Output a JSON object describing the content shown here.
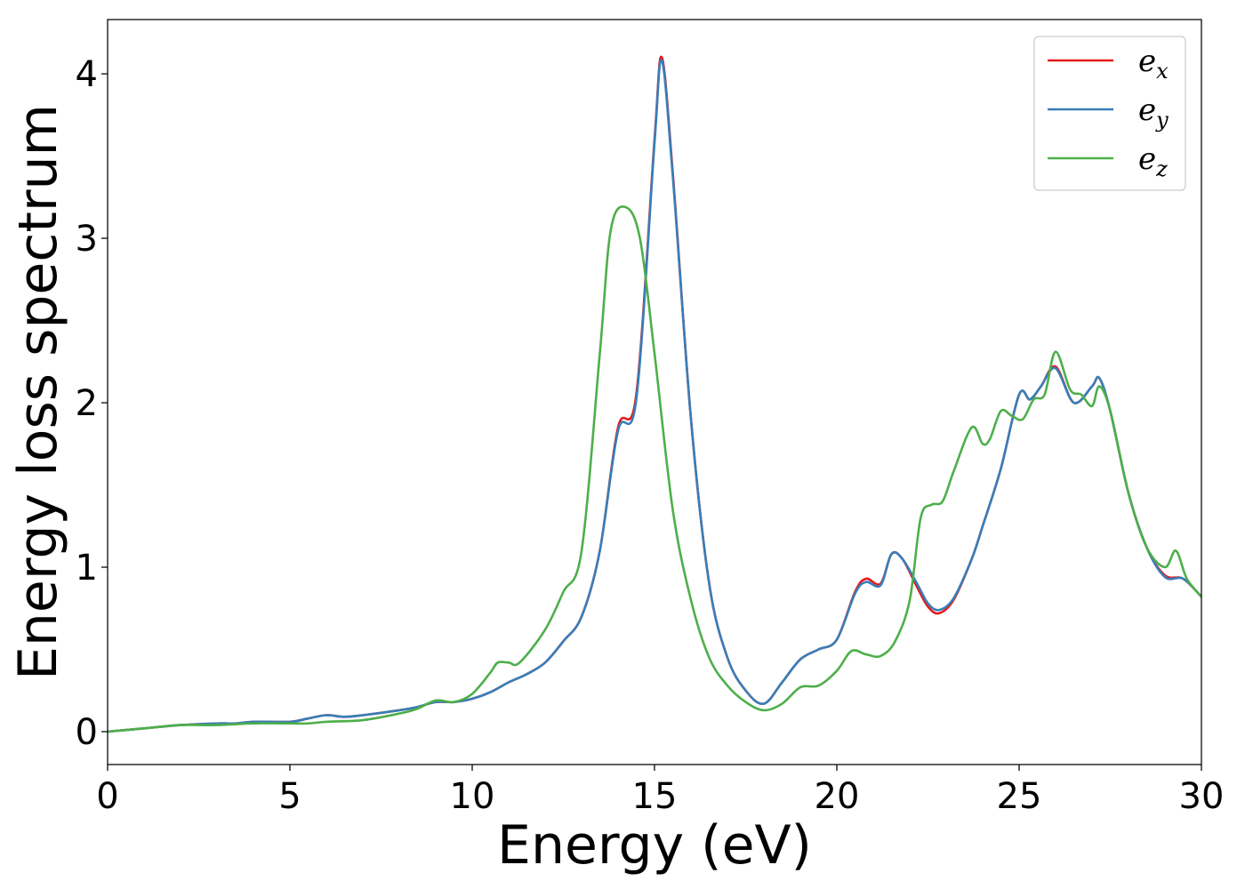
{
  "chart_data": {
    "type": "line",
    "title": "",
    "xlabel": "Energy (eV)",
    "ylabel": "Energy loss spectrum",
    "xlim": [
      0,
      30
    ],
    "ylim": [
      -0.2,
      4.33
    ],
    "xticks": [
      0,
      5,
      10,
      15,
      20,
      25,
      30
    ],
    "yticks": [
      0,
      1,
      2,
      3,
      4
    ],
    "grid": false,
    "legend_position": "top-right",
    "series": [
      {
        "name": "e_x",
        "label_base": "e",
        "label_sub": "x",
        "color": "#e41a1c",
        "x": [
          0,
          1,
          2,
          3,
          3.5,
          4,
          5,
          5.5,
          6,
          6.5,
          7,
          8,
          8.5,
          9,
          9.5,
          10,
          10.5,
          11,
          11.5,
          12,
          12.5,
          13,
          13.5,
          14,
          14.5,
          15,
          15.2,
          15.5,
          16,
          16.5,
          17,
          17.5,
          18,
          18.5,
          19,
          19.5,
          20,
          20.5,
          20.8,
          21.2,
          21.5,
          21.8,
          22.2,
          22.5,
          22.8,
          23.2,
          23.7,
          24,
          24.5,
          25,
          25.3,
          25.6,
          26,
          26.5,
          27,
          27.2,
          27.5,
          28,
          28.5,
          29,
          29.5,
          30
        ],
        "y": [
          0,
          0.02,
          0.04,
          0.05,
          0.05,
          0.06,
          0.06,
          0.08,
          0.1,
          0.09,
          0.1,
          0.13,
          0.15,
          0.18,
          0.18,
          0.2,
          0.24,
          0.3,
          0.35,
          0.42,
          0.55,
          0.7,
          1.1,
          1.85,
          2.05,
          3.6,
          4.1,
          3.4,
          1.9,
          0.9,
          0.45,
          0.25,
          0.17,
          0.3,
          0.44,
          0.5,
          0.56,
          0.85,
          0.93,
          0.9,
          1.08,
          1.05,
          0.88,
          0.76,
          0.72,
          0.8,
          1.05,
          1.25,
          1.6,
          2.05,
          2.02,
          2.1,
          2.22,
          2.0,
          2.1,
          2.15,
          1.95,
          1.45,
          1.12,
          0.95,
          0.93,
          0.82
        ]
      },
      {
        "name": "e_y",
        "label_base": "e",
        "label_sub": "y",
        "color": "#377eb8",
        "x": [
          0,
          1,
          2,
          3,
          3.5,
          4,
          5,
          5.5,
          6,
          6.5,
          7,
          8,
          8.5,
          9,
          9.5,
          10,
          10.5,
          11,
          11.5,
          12,
          12.5,
          13,
          13.5,
          14,
          14.5,
          15,
          15.2,
          15.5,
          16,
          16.5,
          17,
          17.5,
          18,
          18.5,
          19,
          19.5,
          20,
          20.5,
          20.8,
          21.2,
          21.5,
          21.8,
          22.2,
          22.5,
          22.8,
          23.2,
          23.7,
          24,
          24.5,
          25,
          25.3,
          25.6,
          26,
          26.5,
          27,
          27.2,
          27.5,
          28,
          28.5,
          29,
          29.5,
          30
        ],
        "y": [
          0,
          0.02,
          0.04,
          0.05,
          0.05,
          0.06,
          0.06,
          0.08,
          0.1,
          0.09,
          0.1,
          0.13,
          0.15,
          0.18,
          0.18,
          0.2,
          0.24,
          0.3,
          0.35,
          0.42,
          0.55,
          0.7,
          1.1,
          1.83,
          2.02,
          3.58,
          4.08,
          3.38,
          1.9,
          0.9,
          0.45,
          0.25,
          0.17,
          0.3,
          0.44,
          0.5,
          0.56,
          0.84,
          0.91,
          0.89,
          1.08,
          1.05,
          0.9,
          0.78,
          0.74,
          0.81,
          1.05,
          1.25,
          1.6,
          2.05,
          2.02,
          2.1,
          2.21,
          2.0,
          2.1,
          2.15,
          1.95,
          1.45,
          1.12,
          0.94,
          0.93,
          0.82
        ]
      },
      {
        "name": "e_z",
        "label_base": "e",
        "label_sub": "z",
        "color": "#4daf4a",
        "x": [
          0,
          1,
          2,
          3,
          4,
          5,
          5.5,
          6,
          7,
          8,
          8.5,
          9,
          9.5,
          10,
          10.5,
          10.7,
          11,
          11.3,
          12,
          12.5,
          13,
          13.5,
          13.8,
          14.2,
          14.6,
          15,
          15.5,
          16,
          16.5,
          17,
          17.5,
          18,
          18.5,
          19,
          19.5,
          20,
          20.4,
          20.8,
          21.2,
          21.6,
          22,
          22.3,
          22.6,
          22.9,
          23.2,
          23.7,
          24,
          24.2,
          24.5,
          24.8,
          25.1,
          25.4,
          25.7,
          26,
          26.4,
          26.7,
          27,
          27.2,
          27.5,
          28,
          28.5,
          29,
          29.3,
          29.6,
          30
        ],
        "y": [
          0,
          0.02,
          0.04,
          0.04,
          0.05,
          0.05,
          0.05,
          0.06,
          0.07,
          0.11,
          0.14,
          0.19,
          0.18,
          0.23,
          0.36,
          0.42,
          0.42,
          0.42,
          0.62,
          0.85,
          1.1,
          2.3,
          3.05,
          3.19,
          3.0,
          2.3,
          1.35,
          0.8,
          0.45,
          0.28,
          0.18,
          0.13,
          0.17,
          0.27,
          0.28,
          0.37,
          0.49,
          0.47,
          0.46,
          0.55,
          0.8,
          1.3,
          1.38,
          1.4,
          1.58,
          1.85,
          1.75,
          1.78,
          1.95,
          1.92,
          1.9,
          2.02,
          2.05,
          2.31,
          2.08,
          2.05,
          1.98,
          2.1,
          1.95,
          1.45,
          1.12,
          1.0,
          1.1,
          0.93,
          0.82
        ]
      }
    ]
  }
}
